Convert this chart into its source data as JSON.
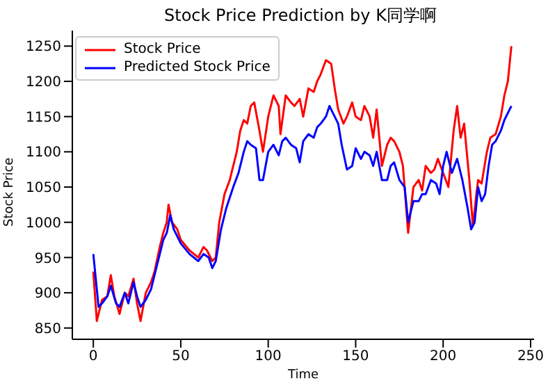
{
  "chart_data": {
    "type": "line",
    "title": "Stock Price Prediction by K同学啊",
    "xlabel": "Time",
    "ylabel": "Stock Price",
    "xlim": [
      -12,
      252
    ],
    "xticks": [
      0,
      50,
      100,
      150,
      200,
      250
    ],
    "ylim": [
      834,
      1272
    ],
    "yticks": [
      850,
      900,
      950,
      1000,
      1050,
      1100,
      1150,
      1200,
      1250
    ],
    "grid": false,
    "legend": "top left",
    "marker": "none",
    "line_style": "solid",
    "series": [
      {
        "name": "Stock Price",
        "color": "#ff0000",
        "x": [
          0,
          2,
          5,
          8,
          10,
          12,
          15,
          18,
          20,
          23,
          25,
          27,
          30,
          33,
          35,
          38,
          40,
          42,
          43,
          45,
          48,
          50,
          55,
          60,
          63,
          65,
          68,
          70,
          72,
          75,
          78,
          80,
          82,
          84,
          86,
          88,
          90,
          92,
          95,
          97,
          100,
          103,
          106,
          107,
          110,
          113,
          115,
          118,
          120,
          123,
          126,
          128,
          130,
          133,
          136,
          138,
          140,
          143,
          145,
          148,
          150,
          153,
          155,
          158,
          160,
          162,
          165,
          168,
          170,
          172,
          175,
          177,
          180,
          183,
          186,
          188,
          190,
          193,
          195,
          197,
          200,
          203,
          206,
          208,
          210,
          212,
          215,
          217,
          219,
          220,
          222,
          225,
          227,
          230,
          233,
          235,
          237,
          239
        ],
        "values": [
          930,
          860,
          890,
          895,
          925,
          895,
          870,
          900,
          895,
          920,
          885,
          860,
          900,
          915,
          930,
          965,
          985,
          1000,
          1025,
          1000,
          990,
          975,
          960,
          950,
          965,
          960,
          945,
          950,
          1000,
          1040,
          1060,
          1080,
          1100,
          1130,
          1145,
          1140,
          1165,
          1170,
          1130,
          1100,
          1150,
          1180,
          1165,
          1125,
          1180,
          1170,
          1165,
          1175,
          1150,
          1190,
          1185,
          1200,
          1210,
          1230,
          1225,
          1190,
          1160,
          1140,
          1150,
          1170,
          1150,
          1145,
          1165,
          1150,
          1120,
          1160,
          1080,
          1110,
          1120,
          1115,
          1100,
          1080,
          985,
          1050,
          1060,
          1045,
          1080,
          1070,
          1075,
          1090,
          1070,
          1050,
          1130,
          1165,
          1120,
          1140,
          1060,
          995,
          1040,
          1060,
          1055,
          1100,
          1120,
          1125,
          1150,
          1180,
          1200,
          1250
        ]
      },
      {
        "name": "Predicted Stock Price",
        "color": "#0000ff",
        "x": [
          0,
          3,
          5,
          8,
          10,
          13,
          15,
          18,
          20,
          23,
          25,
          27,
          30,
          33,
          35,
          38,
          40,
          42,
          44,
          46,
          50,
          55,
          60,
          63,
          66,
          68,
          70,
          73,
          76,
          80,
          83,
          86,
          88,
          90,
          93,
          95,
          97,
          100,
          103,
          106,
          108,
          110,
          113,
          116,
          118,
          120,
          123,
          126,
          128,
          130,
          133,
          135,
          137,
          140,
          142,
          145,
          148,
          150,
          153,
          155,
          158,
          160,
          162,
          165,
          168,
          170,
          172,
          175,
          178,
          180,
          183,
          186,
          188,
          190,
          193,
          196,
          198,
          200,
          202,
          205,
          208,
          211,
          214,
          216,
          218,
          220,
          222,
          224,
          226,
          228,
          230,
          233,
          235,
          237,
          239
        ],
        "values": [
          955,
          880,
          885,
          895,
          910,
          885,
          880,
          900,
          885,
          915,
          895,
          880,
          890,
          905,
          925,
          955,
          975,
          985,
          1010,
          990,
          970,
          955,
          945,
          955,
          950,
          935,
          945,
          990,
          1020,
          1050,
          1070,
          1100,
          1115,
          1110,
          1105,
          1060,
          1060,
          1100,
          1110,
          1095,
          1115,
          1120,
          1110,
          1105,
          1085,
          1115,
          1125,
          1120,
          1135,
          1140,
          1150,
          1165,
          1155,
          1140,
          1110,
          1075,
          1080,
          1105,
          1090,
          1100,
          1095,
          1080,
          1100,
          1060,
          1060,
          1080,
          1085,
          1060,
          1050,
          1000,
          1030,
          1030,
          1040,
          1040,
          1060,
          1055,
          1040,
          1080,
          1100,
          1070,
          1090,
          1060,
          1020,
          990,
          1000,
          1050,
          1030,
          1040,
          1080,
          1110,
          1115,
          1130,
          1145,
          1155,
          1165
        ]
      }
    ]
  }
}
